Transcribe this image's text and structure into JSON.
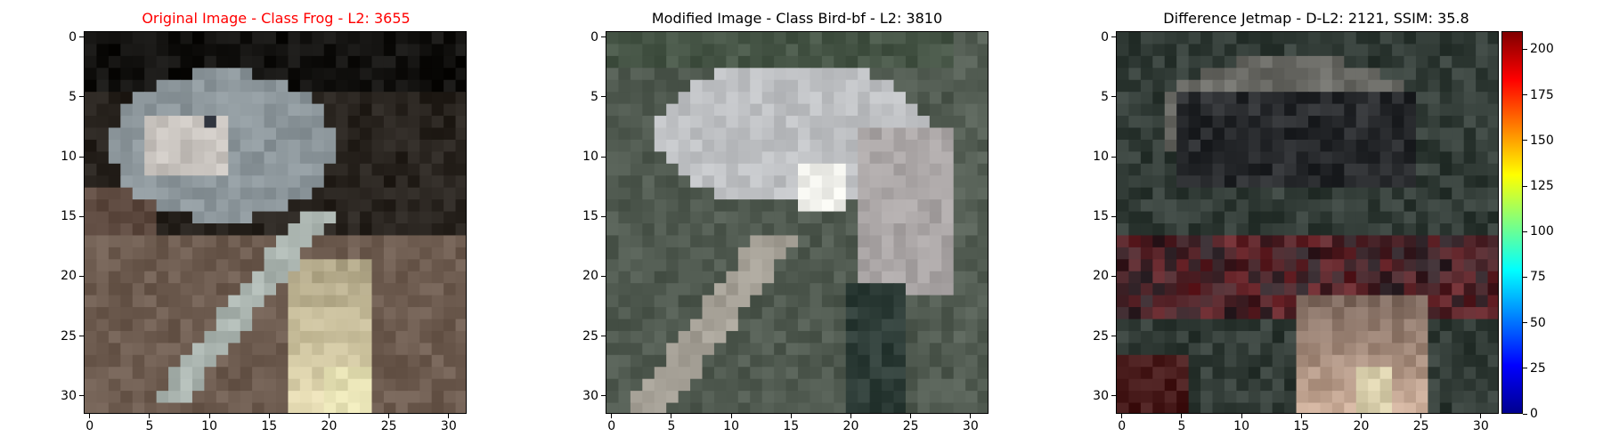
{
  "chart_data": [
    {
      "type": "heatmap",
      "panel": "original",
      "title": "Original Image - Class Frog - L2: 3655",
      "title_color": "#ff0000",
      "xlabel": "",
      "ylabel": "",
      "xlim": [
        -0.5,
        31.5
      ],
      "ylim": [
        31.5,
        -0.5
      ],
      "x_ticks": [
        0,
        5,
        10,
        15,
        20,
        25,
        30
      ],
      "y_ticks": [
        0,
        5,
        10,
        15,
        20,
        25,
        30
      ],
      "grid": false,
      "image_size": [
        32,
        32
      ],
      "description": "32x32 pixelated RGB image of a frog"
    },
    {
      "type": "heatmap",
      "panel": "modified",
      "title": "Modified Image - Class Bird-bf - L2: 3810",
      "title_color": "#000000",
      "xlabel": "",
      "ylabel": "",
      "xlim": [
        -0.5,
        31.5
      ],
      "ylim": [
        31.5,
        -0.5
      ],
      "x_ticks": [
        0,
        5,
        10,
        15,
        20,
        25,
        30
      ],
      "y_ticks": [
        0,
        5,
        10,
        15,
        20,
        25,
        30
      ],
      "grid": false,
      "image_size": [
        32,
        32
      ],
      "description": "32x32 pixelated RGB image, modified version"
    },
    {
      "type": "heatmap",
      "panel": "difference",
      "title": "Difference Jetmap - D-L2: 2121, SSIM: 35.8",
      "title_color": "#000000",
      "xlabel": "",
      "ylabel": "",
      "xlim": [
        -0.5,
        31.5
      ],
      "ylim": [
        31.5,
        -0.5
      ],
      "x_ticks": [
        0,
        5,
        10,
        15,
        20,
        25,
        30
      ],
      "y_ticks": [
        0,
        5,
        10,
        15,
        20,
        25,
        30
      ],
      "grid": false,
      "image_size": [
        32,
        32
      ],
      "colorbar": {
        "colormap": "jet",
        "range": [
          0,
          210
        ],
        "ticks": [
          0,
          25,
          50,
          75,
          100,
          125,
          150,
          175,
          200
        ]
      }
    }
  ]
}
